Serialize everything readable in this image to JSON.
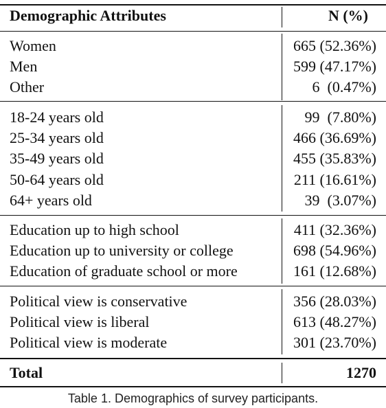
{
  "table": {
    "header": {
      "attribute": "Demographic Attributes",
      "n": "N (%)"
    },
    "groups": [
      {
        "rows": [
          {
            "attribute": "Women",
            "n": "665 (52.36%)"
          },
          {
            "attribute": "Men",
            "n": "599 (47.17%)"
          },
          {
            "attribute": "Other",
            "n": "6  (0.47%)"
          }
        ]
      },
      {
        "rows": [
          {
            "attribute": "18-24 years old",
            "n": "99  (7.80%)"
          },
          {
            "attribute": "25-34 years old",
            "n": "466 (36.69%)"
          },
          {
            "attribute": "35-49 years old",
            "n": "455 (35.83%)"
          },
          {
            "attribute": "50-64 years old",
            "n": "211 (16.61%)"
          },
          {
            "attribute": "64+ years old",
            "n": "39  (3.07%)"
          }
        ]
      },
      {
        "rows": [
          {
            "attribute": "Education up to high school",
            "n": "411 (32.36%)"
          },
          {
            "attribute": "Education up to university or college",
            "n": "698 (54.96%)"
          },
          {
            "attribute": "Education of graduate school or more",
            "n": "161 (12.68%)"
          }
        ]
      },
      {
        "rows": [
          {
            "attribute": "Political view is conservative",
            "n": "356 (28.03%)"
          },
          {
            "attribute": "Political view is liberal",
            "n": "613 (48.27%)"
          },
          {
            "attribute": "Political view is moderate",
            "n": "301 (23.70%)"
          }
        ]
      }
    ],
    "total": {
      "attribute": "Total",
      "n": "1270"
    }
  },
  "caption": "Table 1.  Demographics of survey participants."
}
